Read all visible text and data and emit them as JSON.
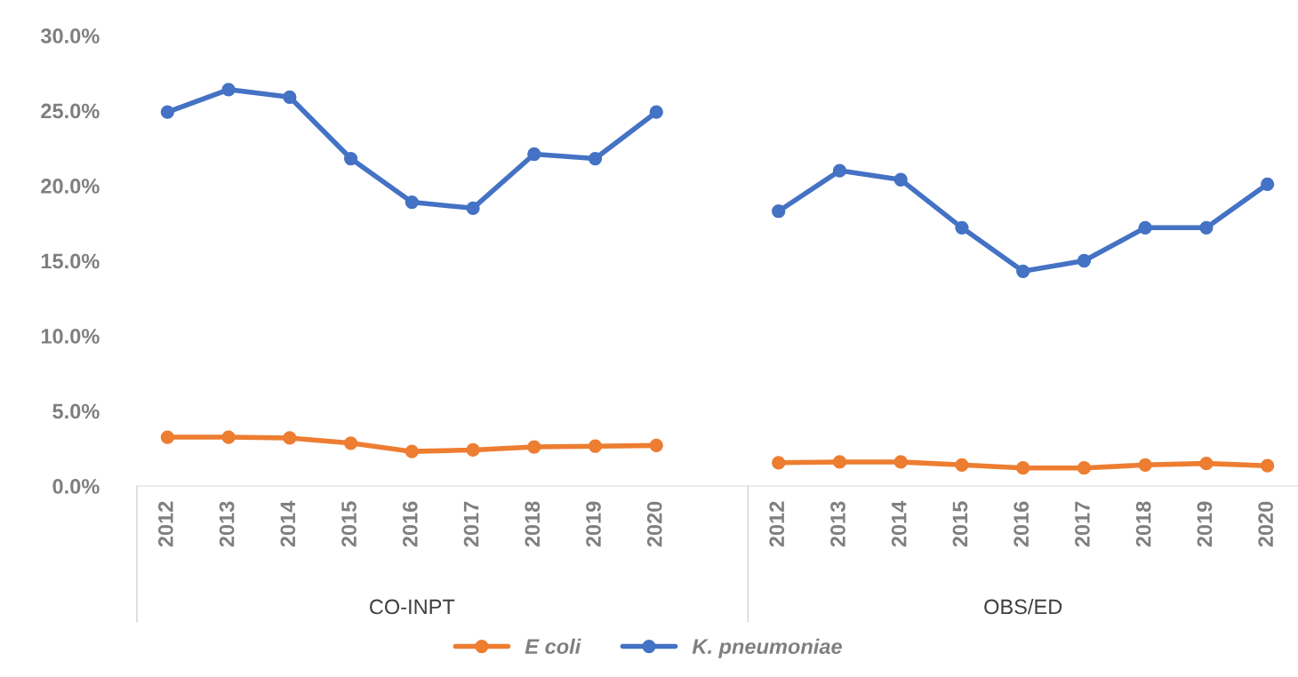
{
  "chart_data": {
    "type": "line",
    "categories": [
      "2012",
      "2013",
      "2014",
      "2015",
      "2016",
      "2017",
      "2018",
      "2019",
      "2020",
      null,
      "2012",
      "2013",
      "2014",
      "2015",
      "2016",
      "2017",
      "2018",
      "2019",
      "2020"
    ],
    "series": [
      {
        "name": "E coli",
        "color": "#ed7d31",
        "values": [
          3.25,
          3.25,
          3.2,
          2.85,
          2.3,
          2.4,
          2.6,
          2.65,
          2.7,
          null,
          1.55,
          1.6,
          1.6,
          1.4,
          1.2,
          1.2,
          1.4,
          1.5,
          1.35
        ]
      },
      {
        "name": "K. pneumoniae",
        "color": "#4472c4",
        "values": [
          24.9,
          26.4,
          25.9,
          21.8,
          18.9,
          18.5,
          22.1,
          21.8,
          24.9,
          null,
          18.3,
          21.0,
          20.4,
          17.2,
          14.3,
          15.0,
          17.2,
          17.2,
          20.1
        ]
      }
    ],
    "annotations": [
      "CO-INPT",
      "OBS/ED"
    ],
    "ylim": [
      0,
      30
    ],
    "yticks": [
      {
        "value": 0,
        "label": "0.0%"
      },
      {
        "value": 5,
        "label": "5.0%"
      },
      {
        "value": 10,
        "label": "10.0%"
      },
      {
        "value": 15,
        "label": "15.0%"
      },
      {
        "value": 20,
        "label": "20.0%"
      },
      {
        "value": 25,
        "label": "25.0%"
      },
      {
        "value": 30,
        "label": "30.0%"
      }
    ],
    "grid": false,
    "legend": "bottom",
    "marker": "circle",
    "line_style": "solid"
  }
}
